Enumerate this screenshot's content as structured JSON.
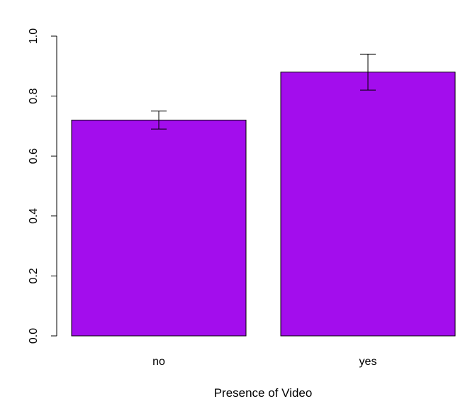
{
  "chart_data": {
    "type": "bar",
    "title": "",
    "xlabel": "Presence of Video",
    "ylabel": "",
    "categories": [
      "no",
      "yes"
    ],
    "values": [
      0.72,
      0.88
    ],
    "error_bars": [
      {
        "low": 0.69,
        "high": 0.75
      },
      {
        "low": 0.82,
        "high": 0.94
      }
    ],
    "ylim": [
      0,
      1
    ],
    "yticks": [
      0.0,
      0.2,
      0.4,
      0.6,
      0.8,
      1.0
    ],
    "ytick_labels": [
      "0.0",
      "0.2",
      "0.4",
      "0.6",
      "0.8",
      "1.0"
    ],
    "grid": false,
    "bar_color": "#a30ded"
  }
}
